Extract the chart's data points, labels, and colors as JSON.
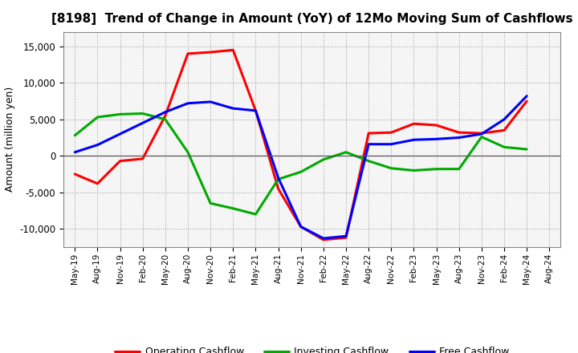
{
  "title": "[8198]  Trend of Change in Amount (YoY) of 12Mo Moving Sum of Cashflows",
  "ylabel": "Amount (million yen)",
  "x_labels": [
    "May-19",
    "Aug-19",
    "Nov-19",
    "Feb-20",
    "May-20",
    "Aug-20",
    "Nov-20",
    "Feb-21",
    "May-21",
    "Aug-21",
    "Nov-21",
    "Feb-22",
    "May-22",
    "Aug-22",
    "Nov-22",
    "Feb-23",
    "May-23",
    "Aug-23",
    "Nov-23",
    "Feb-24",
    "May-24",
    "Aug-24"
  ],
  "operating": [
    -2500,
    -3800,
    -700,
    -400,
    5500,
    14000,
    14200,
    14500,
    6200,
    -4500,
    -9700,
    -11500,
    -11200,
    3100,
    3200,
    4400,
    4200,
    3200,
    3100,
    3500,
    7500,
    null
  ],
  "investing": [
    2800,
    5300,
    5700,
    5800,
    5000,
    500,
    -6500,
    -7200,
    -8000,
    -3200,
    -2200,
    -500,
    500,
    -700,
    -1700,
    -2000,
    -1800,
    -1800,
    2600,
    1200,
    900,
    null
  ],
  "free": [
    500,
    1500,
    3000,
    4500,
    6000,
    7200,
    7400,
    6500,
    6200,
    -3000,
    -9700,
    -11300,
    -11000,
    1600,
    1600,
    2200,
    2300,
    2500,
    3000,
    5000,
    8200,
    null
  ],
  "operating_color": "#ff0000",
  "investing_color": "#00aa00",
  "free_color": "#0000ff",
  "ylim": [
    -12500,
    17000
  ],
  "yticks": [
    -10000,
    -5000,
    0,
    5000,
    10000,
    15000
  ],
  "background_color": "#ffffff",
  "plot_bg_color": "#f5f5f5",
  "grid_color": "#999999"
}
